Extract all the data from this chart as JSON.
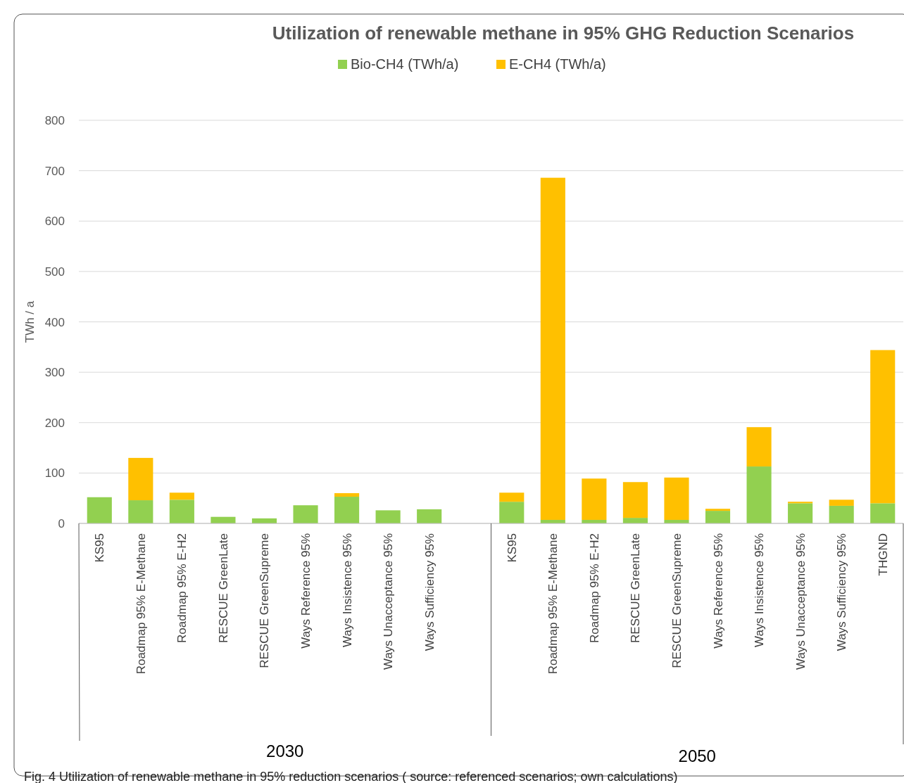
{
  "chart_data": {
    "type": "bar",
    "stacked": true,
    "title": "Utilization of renewable methane in 95% GHG Reduction Scenarios",
    "ylabel": "TWh / a",
    "categories": [
      "KS95",
      "Roadmap 95% E-Methane",
      "Roadmap 95% E-H2",
      "RESCUE GreenLate",
      "RESCUE GreenSupreme",
      "Ways Reference 95%",
      "Ways Insistence 95%",
      "Ways Unacceptance 95%",
      "Ways Sufficiency 95%",
      null,
      "KS95",
      "Roadmap 95% E-Methane",
      "Roadmap 95% E-H2",
      "RESCUE GreenLate",
      "RESCUE GreenSupreme",
      "Ways Reference 95%",
      "Ways Insistence 95%",
      "Ways Unacceptance 95%",
      "Ways Sufficiency 95%",
      "THGND"
    ],
    "series": [
      {
        "name": "Bio-CH4 (TWh/a)",
        "color": "#92d050",
        "values": [
          52,
          46,
          47,
          13,
          10,
          36,
          53,
          26,
          28,
          null,
          43,
          7,
          7,
          11,
          7,
          25,
          113,
          40,
          35,
          40
        ]
      },
      {
        "name": "E-CH4 (TWh/a)",
        "color": "#ffc000",
        "values": [
          0,
          84,
          14,
          0,
          0,
          0,
          7,
          0,
          0,
          null,
          18,
          679,
          82,
          71,
          84,
          4,
          78,
          3,
          12,
          304
        ]
      }
    ],
    "ylim": [
      0,
      800
    ],
    "yticks": [
      0,
      100,
      200,
      300,
      400,
      500,
      600,
      700,
      800
    ],
    "grid": "y",
    "legend": "top",
    "annotations": [
      "2030",
      "2050",
      "Fig. 4  Utilization of renewable methane in 95% reduction scenarios ( source: referenced scenarios; own calculations)"
    ]
  }
}
